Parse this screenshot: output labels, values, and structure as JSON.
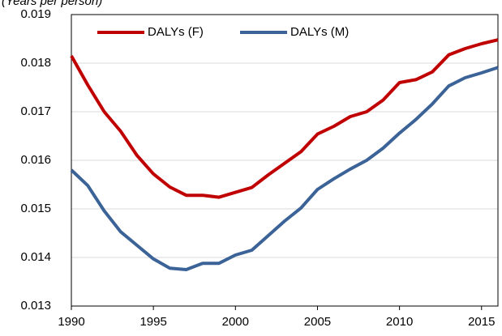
{
  "chart_data": {
    "type": "line",
    "y_label": "(Years per person)",
    "x": [
      1990,
      1991,
      1992,
      1993,
      1994,
      1995,
      1996,
      1997,
      1998,
      1999,
      2000,
      2001,
      2002,
      2003,
      2004,
      2005,
      2006,
      2007,
      2008,
      2009,
      2010,
      2011,
      2012,
      2013,
      2014,
      2015,
      2016
    ],
    "series": [
      {
        "name": "DALYs (F)",
        "color": "#c00000",
        "values": [
          0.01815,
          0.01755,
          0.017,
          0.0166,
          0.0161,
          0.01572,
          0.01545,
          0.01528,
          0.01528,
          0.01524,
          0.01534,
          0.01544,
          0.0157,
          0.01594,
          0.01618,
          0.01654,
          0.0167,
          0.0169,
          0.017,
          0.01724,
          0.0176,
          0.01766,
          0.01782,
          0.01817,
          0.0183,
          0.0184,
          0.01848
        ]
      },
      {
        "name": "DALYs (M)",
        "color": "#3b6397",
        "values": [
          0.0158,
          0.01548,
          0.01496,
          0.01453,
          0.01425,
          0.01397,
          0.01378,
          0.01375,
          0.01388,
          0.01388,
          0.01405,
          0.01415,
          0.01445,
          0.01475,
          0.01502,
          0.0154,
          0.01562,
          0.01582,
          0.016,
          0.01625,
          0.01656,
          0.01684,
          0.01716,
          0.01753,
          0.0177,
          0.0178,
          0.01791
        ]
      }
    ],
    "xlim": [
      1990,
      2016
    ],
    "xticks": [
      1990,
      1995,
      2000,
      2005,
      2010,
      2015
    ],
    "ylim": [
      0.013,
      0.019
    ],
    "yticks": [
      0.013,
      0.014,
      0.015,
      0.016,
      0.017,
      0.018,
      0.019
    ],
    "grid": true,
    "legend": "top"
  }
}
